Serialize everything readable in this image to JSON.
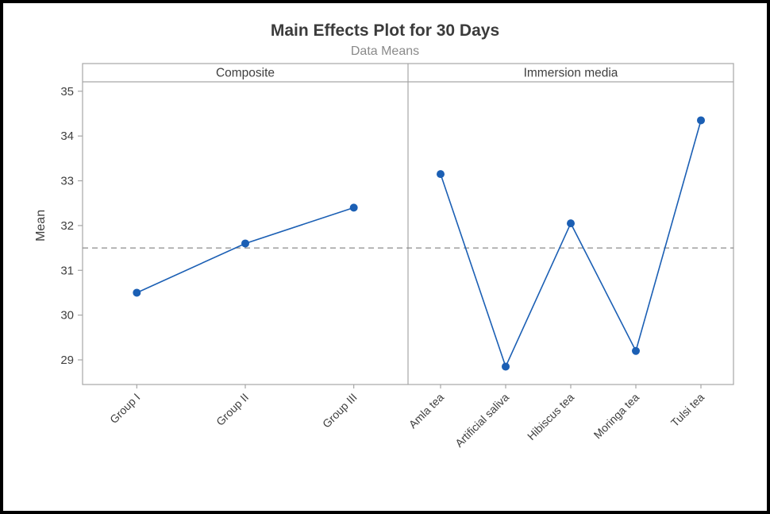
{
  "chart_data": {
    "type": "line",
    "title": "Main Effects Plot for 30 Days",
    "subtitle": "Data Means",
    "ylabel": "Mean",
    "y_ticks": [
      35,
      34,
      33,
      32,
      31,
      30,
      29
    ],
    "ylim": [
      28.45,
      35.21
    ],
    "reference_line": 31.5,
    "legend": "none",
    "grid": "off",
    "panels": [
      {
        "label": "Composite",
        "categories": [
          "Group I",
          "Group II",
          "Group III"
        ],
        "values": [
          30.5,
          31.6,
          32.4
        ]
      },
      {
        "label": "Immersion media",
        "categories": [
          "Amla tea",
          "Artificial saliva",
          "Hibiscus tea",
          "Moringa tea",
          "Tulsi tea"
        ],
        "values": [
          33.15,
          28.85,
          32.05,
          29.2,
          34.35
        ]
      }
    ],
    "colors": {
      "series": "#1b5fb4",
      "reference": "#8c8c8c",
      "frame": "#a6a6a6",
      "text": "#3f3f3f",
      "title_text": "#3b3b3b",
      "subtitle_text": "#8a8a8a"
    }
  }
}
